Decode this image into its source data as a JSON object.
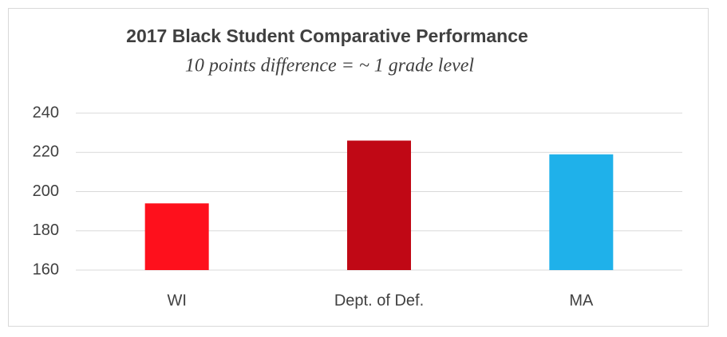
{
  "chart_data": {
    "type": "bar",
    "title": "2017 Black Student Comparative Performance",
    "subtitle": "10 points difference = ~ 1 grade level",
    "categories": [
      "WI",
      "Dept. of Def.",
      "MA"
    ],
    "values": [
      194,
      226,
      219
    ],
    "colors": [
      "#fe101c",
      "#c00815",
      "#1fb1ea"
    ],
    "ylim": [
      160,
      240
    ],
    "yticks": [
      160,
      180,
      200,
      220,
      240
    ],
    "grid": true
  }
}
